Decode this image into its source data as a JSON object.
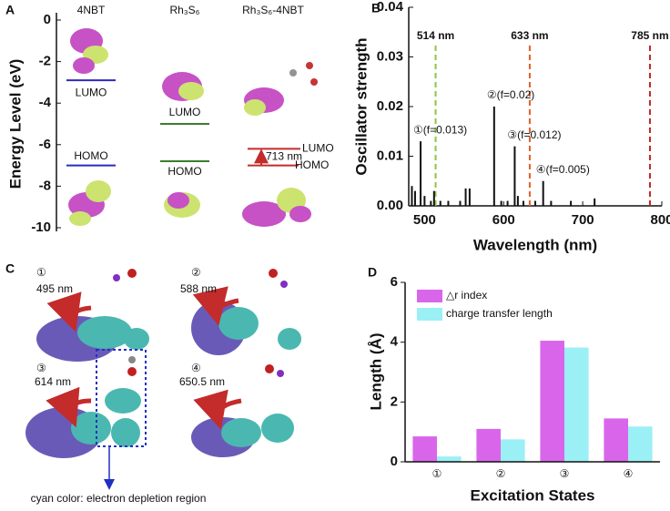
{
  "chart_data": [
    {
      "type": "levels",
      "panel": "A",
      "columns": [
        "4NBT",
        "Rh₃S₆",
        "Rh₃S₆-4NBT"
      ],
      "colors": [
        "#2b2bbf",
        "#3c7d2e",
        "#c42b2b"
      ],
      "series": [
        {
          "name": "LUMO",
          "values": [
            -2.9,
            -5.0,
            -6.2
          ]
        },
        {
          "name": "HOMO",
          "values": [
            -7.0,
            -6.8,
            -7.0
          ]
        }
      ],
      "annotation": "713 nm",
      "y_label": "Energy Level (eV)",
      "ylim": [
        -10,
        0
      ],
      "yticks": [
        0,
        -2,
        -4,
        -6,
        -8,
        -10
      ]
    },
    {
      "type": "stick",
      "panel": "B",
      "x_label": "Wavelength (nm)",
      "y_label": "Oscillator strength",
      "color": "#111111",
      "x": [
        484,
        488,
        495,
        500,
        508,
        512,
        520,
        530,
        545,
        552,
        557,
        588,
        597,
        605,
        614,
        618,
        625,
        640,
        650,
        660,
        685,
        715
      ],
      "values": [
        0.004,
        0.003,
        0.013,
        0.002,
        0.001,
        0.003,
        0.001,
        0.001,
        0.001,
        0.0035,
        0.0035,
        0.02,
        0.001,
        0.001,
        0.012,
        0.002,
        0.001,
        0.001,
        0.005,
        0.001,
        0.001,
        0.0015
      ],
      "annotations": [
        "①(f=0.013)",
        "②(f=0.02)",
        "③(f=0.012)",
        "④(f=0.005)"
      ],
      "lines": [
        {
          "label": "514 nm",
          "x": 514,
          "color": "#8cc63f"
        },
        {
          "label": "633 nm",
          "x": 633,
          "color": "#e0602a"
        },
        {
          "label": "785 nm",
          "x": 785,
          "color": "#c0282a"
        }
      ],
      "xlim": [
        480,
        800
      ],
      "xticks": [
        500,
        600,
        700,
        800
      ],
      "ylim": [
        0,
        0.04
      ],
      "yticks": [
        {
          "value": 0,
          "label": "0.00"
        },
        {
          "value": 0.01,
          "label": "0.01"
        },
        {
          "value": 0.02,
          "label": "0.02"
        },
        {
          "value": 0.03,
          "label": "0.03"
        },
        {
          "value": 0.04,
          "label": "0.04"
        }
      ]
    },
    {
      "type": "bar",
      "panel": "D",
      "x_label": "Excitation States",
      "y_label": "Length (Å)",
      "categories": [
        "①",
        "②",
        "③",
        "④"
      ],
      "series": [
        {
          "name": "△r index",
          "color": "#d966ea",
          "values": [
            0.85,
            1.1,
            4.05,
            1.45
          ]
        },
        {
          "name": "charge transfer length",
          "color": "#9bf0f5",
          "values": [
            0.18,
            0.75,
            3.82,
            1.18
          ]
        }
      ],
      "ylim": [
        0,
        6
      ],
      "yticks": [
        0,
        2,
        4,
        6
      ],
      "legend": "upper-left"
    }
  ],
  "panel_c": {
    "letter": "C",
    "items": [
      {
        "marker": "①",
        "label": "495 nm"
      },
      {
        "marker": "②",
        "label": "588 nm"
      },
      {
        "marker": "③",
        "label": "614 nm"
      },
      {
        "marker": "④",
        "label": "650.5 nm"
      }
    ],
    "note": "cyan color: electron depletion region"
  }
}
